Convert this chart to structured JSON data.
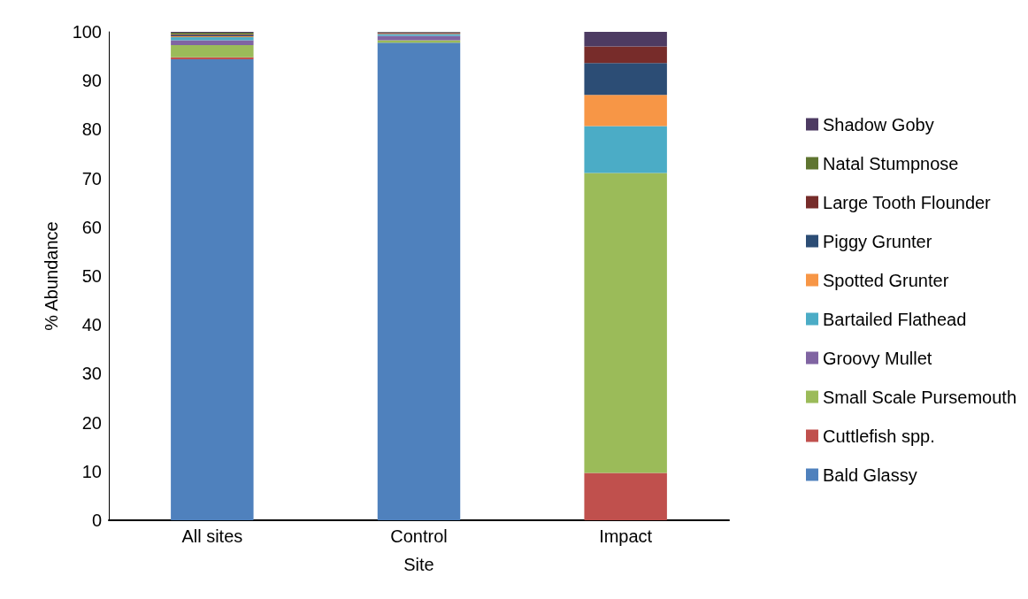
{
  "chart_data": {
    "type": "bar",
    "stacked": true,
    "xlabel": "Site",
    "ylabel": "% Abundance",
    "categories": [
      "All sites",
      "Control",
      "Impact"
    ],
    "ylim": [
      0,
      100
    ],
    "yticks": [
      0,
      10,
      20,
      30,
      40,
      50,
      60,
      70,
      80,
      90,
      100
    ],
    "grid": false,
    "legend": "right",
    "series": [
      {
        "name": "Bald Glassy",
        "color": "#4f81bd",
        "values": [
          94.4,
          97.8,
          0
        ]
      },
      {
        "name": "Cuttlefish spp.",
        "color": "#c0504d",
        "values": [
          0.4,
          0,
          9.7
        ]
      },
      {
        "name": "Small Scale Pursemouth",
        "color": "#9bbb59",
        "values": [
          2.5,
          0.5,
          61.4
        ]
      },
      {
        "name": "Groovy Mullet",
        "color": "#8064a2",
        "values": [
          1.0,
          0.9,
          0
        ]
      },
      {
        "name": "Bartailed Flathead",
        "color": "#4bacc6",
        "values": [
          0.6,
          0.3,
          9.6
        ]
      },
      {
        "name": "Spotted Grunter",
        "color": "#f79646",
        "values": [
          0.2,
          0.1,
          6.4
        ]
      },
      {
        "name": "Piggy Grunter",
        "color": "#2c4d75",
        "values": [
          0.2,
          0.1,
          6.5
        ]
      },
      {
        "name": "Large Tooth Flounder",
        "color": "#772c2a",
        "values": [
          0.2,
          0.1,
          3.4
        ]
      },
      {
        "name": "Natal Stumpnose",
        "color": "#5f7530",
        "values": [
          0.3,
          0.1,
          0
        ]
      },
      {
        "name": "Shadow Goby",
        "color": "#4d3b62",
        "values": [
          0.2,
          0.1,
          3.0
        ]
      }
    ]
  }
}
